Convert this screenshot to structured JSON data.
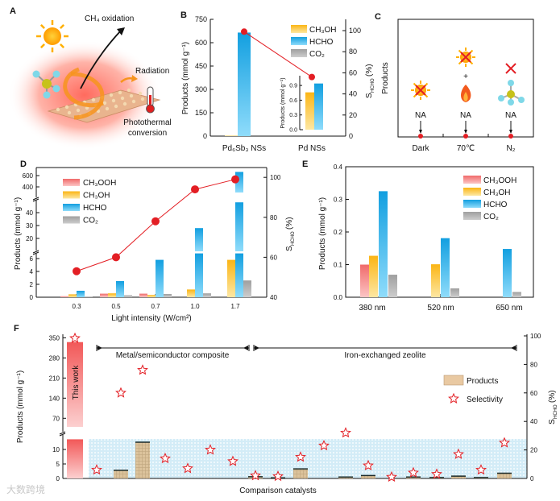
{
  "panel_labels": [
    "A",
    "B",
    "C",
    "D",
    "E",
    "F"
  ],
  "panel_a": {
    "ch4_oxidation": "CH₄ oxidation",
    "radiation": "Radiation",
    "photothermal_1": "Photothermal",
    "photothermal_2": "conversion"
  },
  "panel_c": {
    "ylabel": "Products",
    "categories": [
      "Dark",
      "70℃",
      "N₂"
    ],
    "na": "NA",
    "plus": "+"
  },
  "watermark": "大数跨境",
  "colors": {
    "ch3ooh": "#f07070",
    "ch3oh": "#fbb91c",
    "hcho": "#17a3e4",
    "co2": "#a9a9a9",
    "selectivity": "#e31e24",
    "products_f": "#dcc39c",
    "this_work": "#f25c5c"
  },
  "chart_data": [
    {
      "panel": "B",
      "type": "bar",
      "categories": [
        "Pd₆Sb₃ NSs",
        "Pd NSs"
      ],
      "ylabel": "Products (mmol g⁻¹)",
      "y2label": {
        "main": "S",
        "sub": "HCHO",
        "unit": "(%)"
      },
      "ylim": [
        0,
        750
      ],
      "yticks": [
        "0",
        "150",
        "300",
        "450",
        "600",
        "750"
      ],
      "y2lim": [
        0,
        107
      ],
      "y2ticks": [
        "0",
        "20",
        "40",
        "60",
        "80",
        "100"
      ],
      "legend": [
        "CH₃OH",
        "HCHO",
        "CO₂"
      ],
      "series": [
        {
          "name": "CH₃OH",
          "values": [
            3,
            null
          ]
        },
        {
          "name": "HCHO",
          "values": [
            665,
            null
          ]
        },
        {
          "name": "CO₂",
          "values": [
            0,
            null
          ]
        }
      ],
      "selectivity": [
        99,
        56
      ],
      "inset": {
        "category": "Pd NSs",
        "ylabel": "Products (mmol g⁻¹)",
        "ylim": [
          0,
          1.05
        ],
        "yticks": [
          "0.0",
          "0.3",
          "0.6",
          "0.9"
        ],
        "series": [
          {
            "name": "CH₃OH",
            "value": 0.76
          },
          {
            "name": "HCHO",
            "value": 0.94
          }
        ]
      }
    },
    {
      "panel": "D",
      "type": "bar",
      "categories": [
        "0.3",
        "0.5",
        "0.7",
        "1.0",
        "1.7"
      ],
      "xlabel": "Light intensity (W/cm²)",
      "ylabel": "Products (mmol g⁻¹)",
      "y2label": {
        "main": "S",
        "sub": "HCHO",
        "unit": "(%)"
      },
      "yticks": [
        "0",
        "2",
        "4",
        "6",
        "20",
        "30",
        "40",
        "400",
        "600"
      ],
      "y_breaks": [
        [
          6.8,
          10
        ],
        [
          48,
          300
        ]
      ],
      "y2lim": [
        40,
        100
      ],
      "y2ticks": [
        "40",
        "60",
        "80",
        "100"
      ],
      "legend": [
        "CH₃OOH",
        "CH₃OH",
        "HCHO",
        "CO₂"
      ],
      "series": [
        {
          "name": "CH₃OOH",
          "values": [
            0.15,
            0.55,
            0.55,
            0,
            0
          ]
        },
        {
          "name": "CH₃OH",
          "values": [
            0.45,
            0.6,
            0.35,
            1.2,
            5.8
          ]
        },
        {
          "name": "HCHO",
          "values": [
            1.0,
            2.5,
            5.8,
            28,
            665
          ]
        },
        {
          "name": "CO₂",
          "values": [
            0.1,
            0.3,
            0.5,
            0.6,
            2.6
          ]
        }
      ],
      "selectivity": [
        53,
        60,
        78,
        94,
        99
      ]
    },
    {
      "panel": "E",
      "type": "bar",
      "categories": [
        "380 nm",
        "520 nm",
        "650 nm"
      ],
      "ylabel": "Products (mmol g⁻¹)",
      "ylim": [
        0,
        0.4
      ],
      "yticks": [
        "0.0",
        "0.1",
        "0.2",
        "0.3",
        "0.4"
      ],
      "legend": [
        "CH₃OOH",
        "CH₃OH",
        "HCHO",
        "CO₂"
      ],
      "series": [
        {
          "name": "CH₃OOH",
          "values": [
            0.1,
            0,
            0
          ]
        },
        {
          "name": "CH₃OH",
          "values": [
            0.127,
            0.101,
            0
          ]
        },
        {
          "name": "HCHO",
          "values": [
            0.325,
            0.181,
            0.148
          ]
        },
        {
          "name": "CO₂",
          "values": [
            0.069,
            0.027,
            0.016
          ]
        }
      ]
    },
    {
      "panel": "F",
      "type": "bar",
      "xlabel": "Comparison catalysts",
      "ylabel": "Products (mmol g⁻¹)",
      "y2label": {
        "main": "S",
        "sub": "HCHO",
        "unit": "(%)"
      },
      "yticks": [
        "0",
        "5",
        "10",
        "70",
        "140",
        "210",
        "280",
        "350"
      ],
      "y_breaks": [
        [
          13.5,
          40
        ]
      ],
      "y2lim": [
        0,
        100
      ],
      "y2ticks": [
        "0",
        "20",
        "40",
        "60",
        "80",
        "100"
      ],
      "legend": [
        "Products",
        "Selectivity"
      ],
      "this_work": {
        "label": "This work",
        "products": 335,
        "selectivity": 99
      },
      "groups": [
        {
          "label": "Metal/semiconductor composite",
          "from": 1,
          "to": 7
        },
        {
          "label": "Iron-exchanged zeolite",
          "from": 8,
          "to": 19
        }
      ],
      "products": [
        0,
        2.8,
        12.5,
        0,
        0,
        0,
        0,
        0.6,
        0.2,
        3.3,
        0,
        0.5,
        1.0,
        0,
        0.5,
        0.3,
        0.8,
        0.3,
        1.8
      ],
      "selectivity": [
        6,
        60,
        76,
        14,
        7,
        20,
        12,
        2,
        1.5,
        15,
        23,
        32,
        9,
        1,
        4,
        3,
        17,
        6,
        25
      ]
    }
  ]
}
